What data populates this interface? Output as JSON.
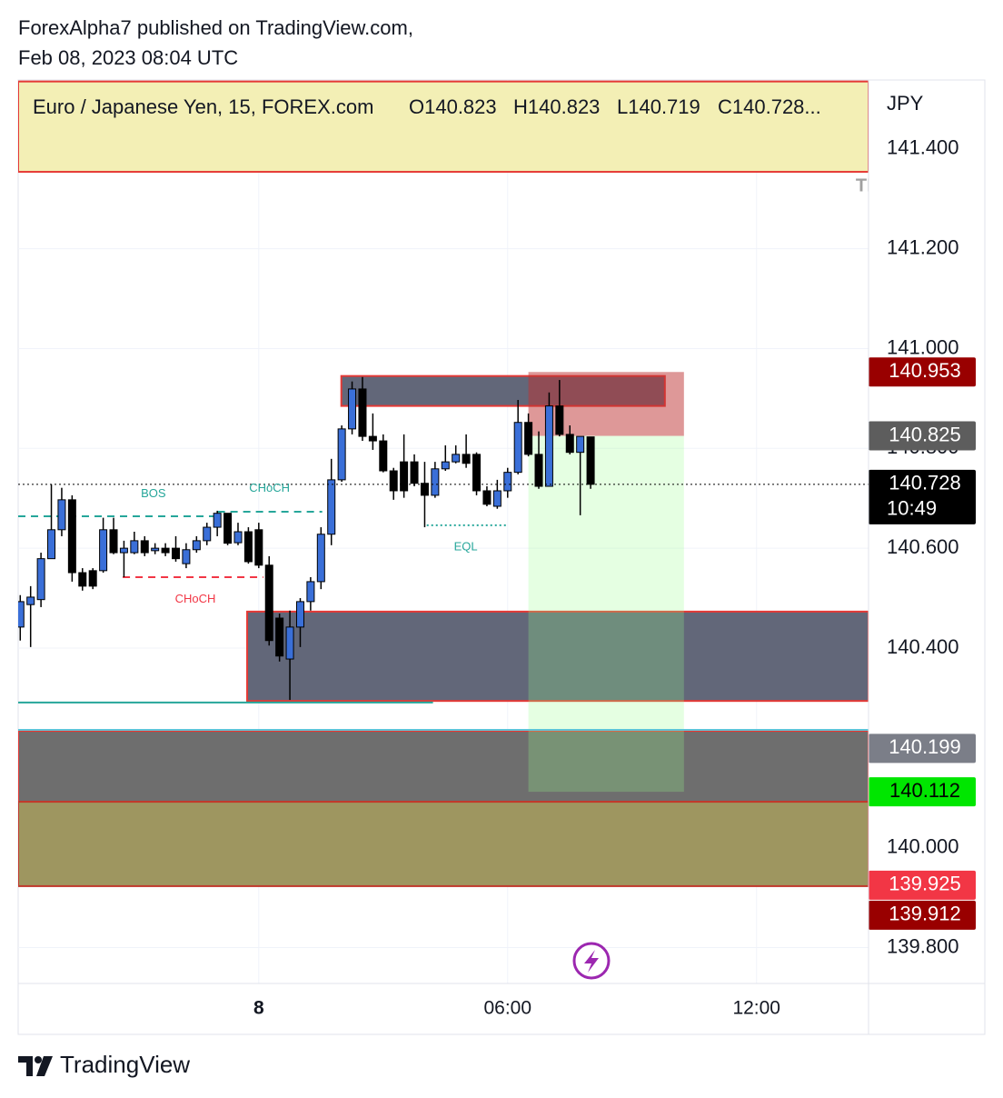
{
  "header": {
    "line1": "ForexAlpha7 published on TradingView.com,",
    "line2": "Feb 08, 2023 08:04 UTC"
  },
  "footer": {
    "brand": "TradingView"
  },
  "chart_data": {
    "type": "candlestick",
    "symbol_info": "Euro / Japanese Yen, 15, FOREX.com",
    "ohlc_labels": [
      "O140.823",
      "H140.823",
      "L140.719",
      "C140.728..."
    ],
    "currency": "JPY",
    "x": [
      -5.75,
      -5.5,
      -5.25,
      -5,
      -4.75,
      -4.5,
      -4.25,
      -4,
      -3.75,
      -3.5,
      -3.25,
      -3,
      -2.75,
      -2.5,
      -2.25,
      -2,
      -1.75,
      -1.5,
      -1.25,
      -1,
      -0.75,
      -0.5,
      -0.25,
      0,
      0.25,
      0.5,
      0.75,
      1,
      1.25,
      1.5,
      1.75,
      2,
      2.25,
      2.5,
      2.75,
      3,
      3.25,
      3.5,
      3.75,
      4,
      4.25,
      4.5,
      4.75,
      5,
      5.25,
      5.5,
      5.75,
      6,
      6.25,
      6.5,
      6.75,
      7,
      7.25,
      7.5,
      7.75,
      8
    ],
    "open": [
      140.442,
      140.487,
      140.497,
      140.579,
      140.637,
      140.697,
      140.551,
      140.555,
      140.555,
      140.637,
      140.591,
      140.591,
      140.615,
      140.595,
      140.6,
      140.6,
      140.569,
      140.597,
      140.615,
      140.642,
      140.67,
      140.611,
      140.633,
      140.637,
      140.566,
      140.46,
      140.378,
      140.442,
      140.493,
      140.533,
      140.628,
      140.737,
      140.839,
      140.919,
      140.824,
      140.815,
      140.755,
      140.773,
      140.773,
      140.73,
      140.706,
      140.759,
      140.773,
      140.788,
      140.788,
      140.715,
      140.684,
      140.715,
      140.752,
      140.852,
      140.788,
      140.724,
      140.885,
      140.828,
      140.792,
      140.823
    ],
    "high": [
      140.506,
      140.524,
      140.591,
      140.728,
      140.721,
      140.706,
      140.56,
      140.56,
      140.661,
      140.661,
      140.615,
      140.633,
      140.624,
      140.61,
      140.61,
      140.624,
      140.61,
      140.624,
      140.651,
      140.675,
      140.67,
      140.651,
      140.642,
      140.651,
      140.584,
      140.469,
      140.475,
      140.5,
      140.542,
      140.642,
      140.779,
      140.846,
      140.934,
      140.943,
      140.87,
      140.828,
      140.761,
      140.828,
      140.788,
      140.773,
      140.773,
      140.806,
      140.806,
      140.828,
      140.792,
      140.724,
      140.737,
      140.761,
      140.897,
      140.87,
      140.834,
      140.912,
      140.937,
      140.846,
      140.824,
      140.823
    ],
    "low": [
      140.415,
      140.402,
      140.482,
      140.579,
      140.624,
      140.533,
      140.515,
      140.518,
      140.551,
      140.588,
      140.542,
      140.588,
      140.584,
      140.588,
      140.584,
      140.573,
      140.56,
      140.591,
      140.606,
      140.624,
      140.606,
      140.606,
      140.569,
      140.56,
      140.405,
      140.373,
      140.296,
      140.402,
      140.475,
      140.518,
      140.606,
      140.733,
      140.828,
      140.815,
      140.797,
      140.752,
      140.697,
      140.701,
      140.724,
      140.642,
      140.701,
      140.755,
      140.77,
      140.761,
      140.706,
      140.684,
      140.679,
      140.701,
      140.748,
      140.784,
      140.719,
      140.724,
      140.824,
      140.788,
      140.666,
      140.719
    ],
    "close": [
      140.493,
      140.502,
      140.579,
      140.637,
      140.697,
      140.551,
      140.524,
      140.524,
      140.637,
      140.591,
      140.6,
      140.615,
      140.591,
      140.6,
      140.591,
      140.579,
      140.597,
      140.615,
      140.642,
      140.67,
      140.61,
      140.633,
      140.573,
      140.566,
      140.415,
      140.384,
      140.442,
      140.493,
      140.533,
      140.628,
      140.737,
      140.839,
      140.919,
      140.824,
      140.815,
      140.755,
      140.715,
      140.715,
      140.73,
      140.706,
      140.759,
      140.773,
      140.788,
      140.77,
      140.715,
      140.688,
      140.715,
      140.752,
      140.852,
      140.788,
      140.724,
      140.885,
      140.828,
      140.792,
      140.824,
      140.728
    ],
    "bull_color": "#3a6fd8",
    "bear_color": "#000000",
    "xlim": [
      -5.8,
      14.7
    ],
    "ylim": [
      139.728,
      141.538
    ],
    "xticks": [
      {
        "value": 0,
        "label": "8"
      },
      {
        "value": 6,
        "label": "06:00"
      },
      {
        "value": 12,
        "label": "12:00"
      }
    ],
    "yticks": [
      {
        "value": 141.4,
        "label": "141.400"
      },
      {
        "value": 141.2,
        "label": "141.200"
      },
      {
        "value": 141,
        "label": "141.000"
      },
      {
        "value": 140.8,
        "label": "140.800"
      },
      {
        "value": 140.6,
        "label": "140.600"
      },
      {
        "value": 140.4,
        "label": "140.400"
      },
      {
        "value": 140.2,
        "label": "140.200"
      },
      {
        "value": 140,
        "label": "140.000"
      },
      {
        "value": 139.8,
        "label": "139.800"
      }
    ],
    "grid": true,
    "zones": [
      {
        "top": 141.535,
        "bottom": 141.354,
        "x0": -5.8,
        "x1": 14.7,
        "fill": "#f3efb5",
        "border": "#e53935"
      },
      {
        "top": 140.234,
        "bottom": 140.092,
        "x0": -5.8,
        "x1": 14.7,
        "fill": "#6e6e6e",
        "border": "#e53935"
      },
      {
        "top": 140.092,
        "bottom": 139.923,
        "x0": -5.8,
        "x1": 14.7,
        "fill": "#9e9660",
        "border": "#c0392b"
      },
      {
        "top": 140.473,
        "bottom": 140.294,
        "x0": -0.28,
        "x1": 14.7,
        "fill": "#626779",
        "border": "#e53935"
      },
      {
        "top": 140.945,
        "bottom": 140.885,
        "x0": 1.99,
        "x1": 9.79,
        "fill": "#626779",
        "border": "#e53935"
      },
      {
        "top": 140.825,
        "bottom": 140.112,
        "x0": 6.5,
        "x1": 10.25,
        "fill": "rgba(150,255,140,0.25)",
        "border": "none"
      },
      {
        "top": 140.953,
        "bottom": 140.825,
        "x0": 6.5,
        "x1": 10.25,
        "fill": "rgba(190,50,50,0.5)",
        "border": "none"
      }
    ],
    "levels": [
      {
        "price": 140.664,
        "x0": -5.8,
        "x1": -0.99,
        "color": "#26a69a",
        "dash": "8 6"
      },
      {
        "price": 140.673,
        "x0": -0.99,
        "x1": 1.53,
        "color": "#26a69a",
        "dash": "8 6"
      },
      {
        "price": 140.542,
        "x0": -3.28,
        "x1": 0.11,
        "color": "#f23645",
        "dash": "8 6"
      },
      {
        "price": 140.646,
        "x0": 4.05,
        "x1": 5.96,
        "color": "#26a69a",
        "dash": "2 3"
      },
      {
        "price": 140.291,
        "x0": -5.8,
        "x1": 4.2,
        "color": "#26a69a",
        "dash": "none"
      },
      {
        "price": 140.236,
        "x0": -5.8,
        "x1": 14.7,
        "color": "#5fc4d8",
        "dash": "none"
      }
    ],
    "annotations": [
      {
        "text": "BOS",
        "x": -2.54,
        "price": 140.708,
        "color": "#26a69a"
      },
      {
        "text": "CHoCH",
        "x": 0.26,
        "price": 140.719,
        "color": "#26a69a"
      },
      {
        "text": "CHoCH",
        "x": -1.53,
        "price": 140.497,
        "color": "#f23645"
      },
      {
        "text": "EQL",
        "x": 4.99,
        "price": 140.602,
        "color": "#26a69a"
      },
      {
        "text": "TP",
        "x": 14.39,
        "price": 141.325,
        "color": "#a0a0a0"
      }
    ],
    "price_tags": [
      {
        "value": 140.953,
        "label": "140.953",
        "bg": "#990000",
        "fg": "#ffffff"
      },
      {
        "value": 140.825,
        "label": "140.825",
        "bg": "#5d5d5d",
        "fg": "#ffffff"
      },
      {
        "value": 140.728,
        "label": "140.728",
        "sub": "10:49",
        "bg": "#000000",
        "fg": "#ffffff"
      },
      {
        "value": 140.199,
        "label": "140.199",
        "bg": "#7b7e88",
        "fg": "#ffffff"
      },
      {
        "value": 140.112,
        "label": "140.112",
        "bg": "#00e600",
        "fg": "#000000"
      },
      {
        "value": 139.925,
        "label": "139.925",
        "bg": "#f23645",
        "fg": "#ffffff"
      },
      {
        "value": 139.912,
        "label": "139.912",
        "bg": "#990000",
        "fg": "#ffffff"
      }
    ]
  }
}
